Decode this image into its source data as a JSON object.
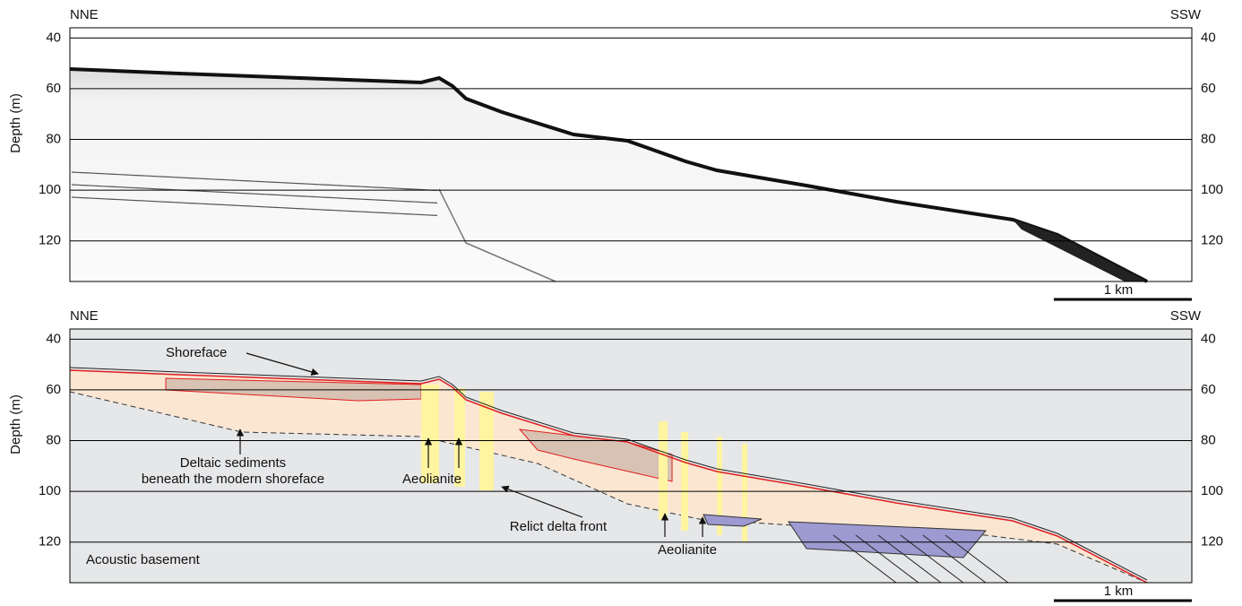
{
  "chart_data": [
    {
      "type": "section",
      "left_label": "NNE",
      "right_label": "SSW",
      "ylabel": "Depth (m)",
      "ylim": [
        36,
        136
      ],
      "yticks": [
        40,
        60,
        80,
        100,
        120
      ],
      "grid": true,
      "scale_label": "1 km"
    },
    {
      "type": "section",
      "left_label": "NNE",
      "right_label": "SSW",
      "ylabel": "Depth (m)",
      "ylim": [
        36,
        136
      ],
      "yticks": [
        40,
        60,
        80,
        100,
        120
      ],
      "grid": true,
      "scale_label": "1 km",
      "annotations": [
        "Shoreface",
        "Deltaic sediments",
        "beneath the modern shoreface",
        "Aeolianite",
        "Relict delta front",
        "Aeolianite",
        "Acoustic basement"
      ]
    }
  ]
}
